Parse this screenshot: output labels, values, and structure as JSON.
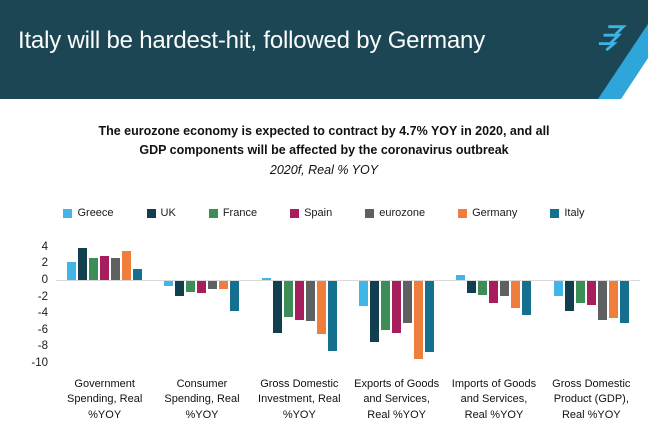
{
  "header": {
    "title": "Italy will be hardest-hit, followed by Germany",
    "banner_color": "#1c4653",
    "accent_color": "#2ea6d9",
    "logo_color": "#3fb3e3"
  },
  "subtitle": {
    "line1": "The eurozone economy is expected to contract by 4.7% YOY in 2020, and all",
    "line2": "GDP components will be affected by the coronavirus outbreak",
    "caption": "2020f, Real % YOY"
  },
  "chart_data": {
    "type": "bar",
    "title": "2020f, Real % YOY",
    "xlabel": "",
    "ylabel": "",
    "ylim": [
      -10.5,
      4.8
    ],
    "yticks": [
      4,
      2,
      0,
      -2,
      -4,
      -6,
      -8,
      -10
    ],
    "grid": "zero-line-only",
    "legend_position": "top",
    "categories": [
      "Government Spending, Real %YOY",
      "Consumer Spending, Real %YOY",
      "Gross Domestic Investment, Real %YOY",
      "Exports of Goods and Services, Real %YOY",
      "Imports of Goods and Services, Real %YOY",
      "Gross Domestic Product (GDP), Real %YOY"
    ],
    "series": [
      {
        "name": "Greece",
        "color": "#41b6e6",
        "values": [
          2.2,
          -0.6,
          0.3,
          -3.0,
          0.6,
          -1.8
        ]
      },
      {
        "name": "UK",
        "color": "#113f4f",
        "values": [
          3.9,
          -1.8,
          -6.3,
          -7.3,
          -1.4,
          -3.6
        ]
      },
      {
        "name": "France",
        "color": "#3d8e56",
        "values": [
          2.6,
          -1.3,
          -4.3,
          -5.9,
          -1.7,
          -2.7
        ]
      },
      {
        "name": "Spain",
        "color": "#a81e5c",
        "values": [
          2.9,
          -1.4,
          -4.7,
          -6.3,
          -2.6,
          -2.9
        ]
      },
      {
        "name": "eurozone",
        "color": "#5f6062",
        "values": [
          2.6,
          -1.0,
          -4.8,
          -5.0,
          -1.8,
          -4.7
        ]
      },
      {
        "name": "Germany",
        "color": "#ef7d3c",
        "values": [
          3.5,
          -1.0,
          -6.4,
          -9.4,
          -3.2,
          -4.5
        ]
      },
      {
        "name": "Italy",
        "color": "#15708f",
        "values": [
          1.3,
          -3.6,
          -8.4,
          -8.6,
          -4.1,
          -5.0
        ]
      }
    ]
  }
}
